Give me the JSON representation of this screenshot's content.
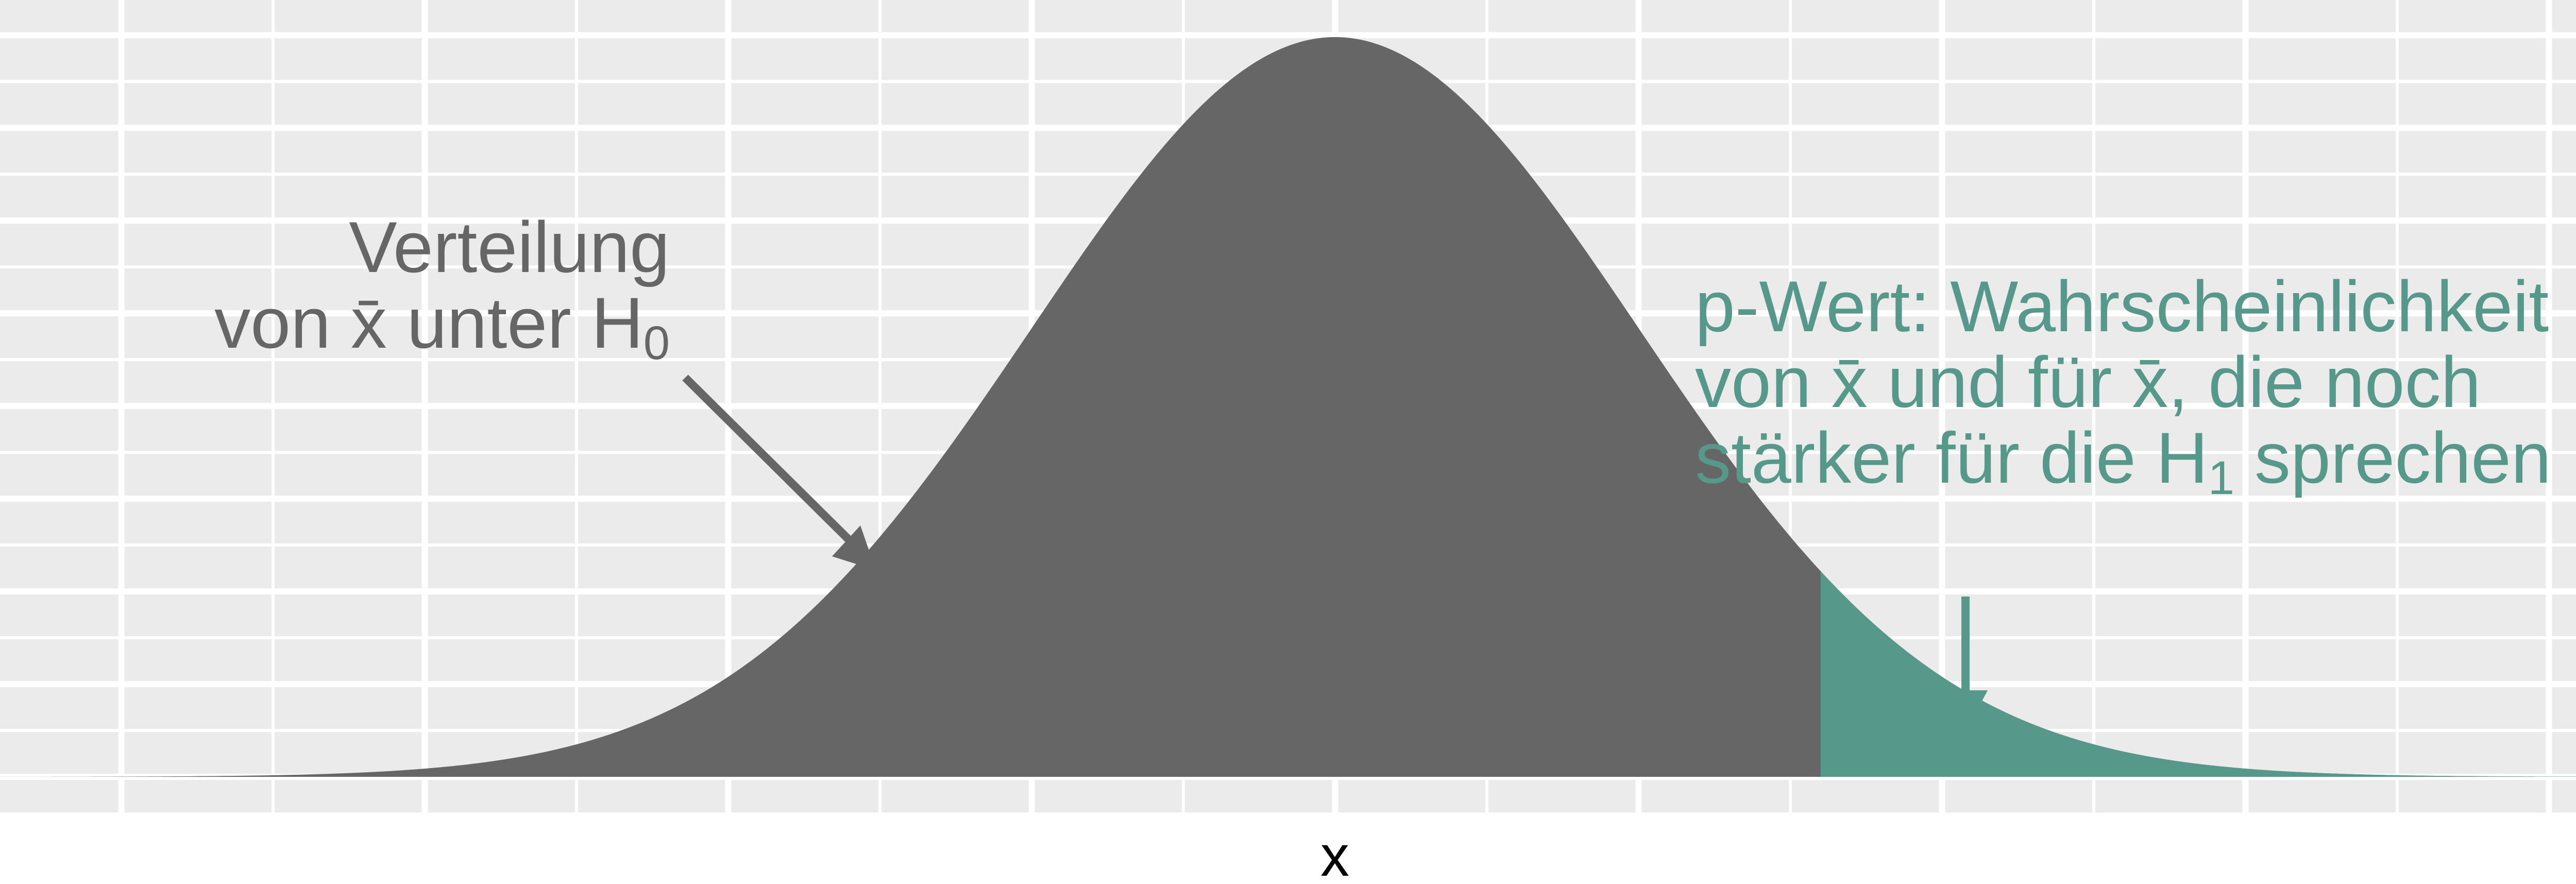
{
  "chart_data": {
    "type": "area",
    "title": "",
    "xlabel": "x",
    "ylabel": "",
    "distribution": "normal",
    "mean": 0,
    "sd": 1,
    "xlim": [
      -4.4,
      4.4
    ],
    "ylim": [
      0,
      0.41
    ],
    "shaded_from": 1.6,
    "grid": true,
    "legend": "none",
    "series": [
      {
        "role": "density",
        "color": "#666666"
      },
      {
        "role": "p-value-tail",
        "color": "#56998A"
      }
    ],
    "annotations": {
      "left": {
        "line1": "Verteilung",
        "line2_prefix": "von ",
        "xbar": "x̄",
        "line2_mid": " unter H",
        "sub": "0",
        "color": "#666666"
      },
      "right": {
        "line1": "p-Wert: Wahrscheinlichkeit",
        "line2_a": "von  ",
        "xbar1": "x̄",
        "line2_b": " und für ",
        "xbar2": "x̄",
        "line2_c": ", die noch",
        "line3_a": "stärker für die H",
        "sub": "1",
        "line3_b": " sprechen",
        "color": "#56998A"
      }
    }
  }
}
